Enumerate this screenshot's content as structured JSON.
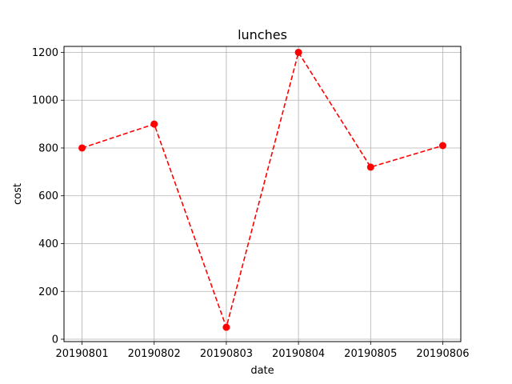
{
  "chart_data": {
    "type": "line",
    "title": "lunches",
    "xlabel": "date",
    "ylabel": "cost",
    "categories": [
      "20190801",
      "20190802",
      "20190803",
      "20190804",
      "20190805",
      "20190806"
    ],
    "series": [
      {
        "values": [
          800,
          900,
          50,
          1200,
          720,
          810
        ],
        "color": "#ff0000",
        "line_style": "dashed",
        "marker": "circle"
      }
    ],
    "ylim": [
      0,
      1200
    ],
    "yticks": [
      0,
      200,
      400,
      600,
      800,
      1000,
      1200
    ],
    "grid": true
  }
}
